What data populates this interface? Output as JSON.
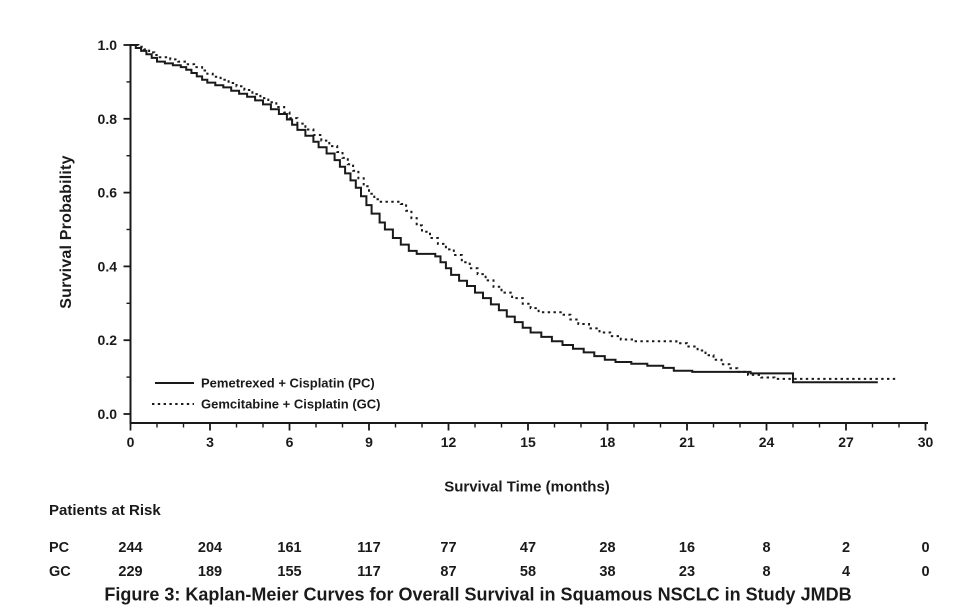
{
  "figure": {
    "caption": "Figure 3: Kaplan-Meier Curves for Overall Survival in Squamous NSCLC in Study JMDB"
  },
  "colors": {
    "background": "#ffffff",
    "axis": "#1a1a1a",
    "text": "#1a1a1a",
    "curve": "#1a1a1a"
  },
  "chart_data": {
    "type": "line",
    "subtype": "kaplan-meier-step",
    "title": "",
    "xlabel": "Survival Time (months)",
    "ylabel": "Survival Probability",
    "xlim": [
      0,
      30
    ],
    "ylim": [
      0.0,
      1.0
    ],
    "grid": false,
    "x_major_ticks": [
      0,
      3,
      6,
      9,
      12,
      15,
      18,
      21,
      24,
      27,
      30
    ],
    "x_minor_tick_step": 1,
    "y_major_ticks": [
      0.0,
      0.2,
      0.4,
      0.6,
      0.8,
      1.0
    ],
    "y_tick_labels": [
      "0.0",
      "0.2",
      "0.4",
      "0.6",
      "0.8",
      "1.0"
    ],
    "y_minor_ticks": [
      0.1,
      0.3,
      0.5,
      0.7,
      0.9
    ],
    "legend_position": "inside-lower-left",
    "series": [
      {
        "name": "Pemetrexed + Cisplatin (PC)",
        "abbr": "PC",
        "style": "solid",
        "color": "#1a1a1a",
        "points": [
          [
            0,
            1.0
          ],
          [
            0.2,
            0.992
          ],
          [
            0.4,
            0.984
          ],
          [
            0.6,
            0.975
          ],
          [
            0.8,
            0.965
          ],
          [
            1.0,
            0.955
          ],
          [
            1.3,
            0.95
          ],
          [
            1.6,
            0.945
          ],
          [
            1.9,
            0.94
          ],
          [
            2.1,
            0.933
          ],
          [
            2.3,
            0.924
          ],
          [
            2.5,
            0.915
          ],
          [
            2.7,
            0.906
          ],
          [
            2.9,
            0.898
          ],
          [
            3.2,
            0.891
          ],
          [
            3.5,
            0.885
          ],
          [
            3.8,
            0.876
          ],
          [
            4.1,
            0.868
          ],
          [
            4.4,
            0.86
          ],
          [
            4.7,
            0.85
          ],
          [
            5.0,
            0.839
          ],
          [
            5.3,
            0.826
          ],
          [
            5.6,
            0.813
          ],
          [
            5.9,
            0.798
          ],
          [
            6.1,
            0.784
          ],
          [
            6.3,
            0.77
          ],
          [
            6.6,
            0.754
          ],
          [
            6.9,
            0.738
          ],
          [
            7.1,
            0.723
          ],
          [
            7.4,
            0.706
          ],
          [
            7.7,
            0.688
          ],
          [
            7.9,
            0.67
          ],
          [
            8.1,
            0.652
          ],
          [
            8.3,
            0.633
          ],
          [
            8.5,
            0.613
          ],
          [
            8.7,
            0.59
          ],
          [
            8.9,
            0.566
          ],
          [
            9.1,
            0.543
          ],
          [
            9.4,
            0.519
          ],
          [
            9.6,
            0.5
          ],
          [
            9.9,
            0.477
          ],
          [
            10.2,
            0.459
          ],
          [
            10.5,
            0.442
          ],
          [
            10.8,
            0.434
          ],
          [
            11.5,
            0.427
          ],
          [
            11.7,
            0.411
          ],
          [
            11.9,
            0.395
          ],
          [
            12.1,
            0.377
          ],
          [
            12.4,
            0.361
          ],
          [
            12.7,
            0.347
          ],
          [
            13.0,
            0.329
          ],
          [
            13.3,
            0.314
          ],
          [
            13.6,
            0.297
          ],
          [
            13.9,
            0.281
          ],
          [
            14.2,
            0.264
          ],
          [
            14.5,
            0.249
          ],
          [
            14.8,
            0.234
          ],
          [
            15.1,
            0.221
          ],
          [
            15.5,
            0.209
          ],
          [
            15.9,
            0.197
          ],
          [
            16.3,
            0.187
          ],
          [
            16.7,
            0.177
          ],
          [
            17.1,
            0.167
          ],
          [
            17.5,
            0.157
          ],
          [
            17.9,
            0.147
          ],
          [
            18.3,
            0.141
          ],
          [
            18.9,
            0.136
          ],
          [
            19.5,
            0.131
          ],
          [
            20.1,
            0.125
          ],
          [
            20.5,
            0.117
          ],
          [
            21.2,
            0.114
          ],
          [
            23.4,
            0.11
          ],
          [
            25.0,
            0.086
          ],
          [
            28.2,
            0.086
          ]
        ]
      },
      {
        "name": "Gemcitabine + Cisplatin (GC)",
        "abbr": "GC",
        "style": "dotted",
        "color": "#1a1a1a",
        "points": [
          [
            0,
            1.0
          ],
          [
            0.3,
            0.995
          ],
          [
            0.5,
            0.988
          ],
          [
            0.7,
            0.98
          ],
          [
            0.9,
            0.973
          ],
          [
            1.1,
            0.967
          ],
          [
            1.5,
            0.961
          ],
          [
            1.8,
            0.955
          ],
          [
            2.1,
            0.948
          ],
          [
            2.4,
            0.94
          ],
          [
            2.7,
            0.931
          ],
          [
            2.9,
            0.922
          ],
          [
            3.1,
            0.914
          ],
          [
            3.4,
            0.906
          ],
          [
            3.7,
            0.897
          ],
          [
            4.0,
            0.888
          ],
          [
            4.3,
            0.878
          ],
          [
            4.6,
            0.867
          ],
          [
            4.9,
            0.856
          ],
          [
            5.2,
            0.845
          ],
          [
            5.5,
            0.832
          ],
          [
            5.8,
            0.817
          ],
          [
            6.0,
            0.802
          ],
          [
            6.3,
            0.787
          ],
          [
            6.6,
            0.771
          ],
          [
            6.9,
            0.756
          ],
          [
            7.2,
            0.741
          ],
          [
            7.5,
            0.726
          ],
          [
            7.8,
            0.71
          ],
          [
            8.0,
            0.694
          ],
          [
            8.2,
            0.677
          ],
          [
            8.4,
            0.659
          ],
          [
            8.6,
            0.639
          ],
          [
            8.8,
            0.617
          ],
          [
            9.0,
            0.597
          ],
          [
            9.2,
            0.582
          ],
          [
            9.4,
            0.575
          ],
          [
            10.2,
            0.569
          ],
          [
            10.4,
            0.551
          ],
          [
            10.6,
            0.531
          ],
          [
            10.8,
            0.511
          ],
          [
            11.0,
            0.494
          ],
          [
            11.3,
            0.477
          ],
          [
            11.6,
            0.461
          ],
          [
            11.9,
            0.446
          ],
          [
            12.2,
            0.431
          ],
          [
            12.5,
            0.411
          ],
          [
            12.8,
            0.395
          ],
          [
            13.1,
            0.379
          ],
          [
            13.4,
            0.362
          ],
          [
            13.7,
            0.345
          ],
          [
            14.0,
            0.329
          ],
          [
            14.4,
            0.314
          ],
          [
            14.8,
            0.299
          ],
          [
            15.1,
            0.287
          ],
          [
            15.4,
            0.276
          ],
          [
            16.3,
            0.269
          ],
          [
            16.6,
            0.256
          ],
          [
            16.9,
            0.244
          ],
          [
            17.3,
            0.232
          ],
          [
            17.7,
            0.221
          ],
          [
            18.1,
            0.211
          ],
          [
            18.5,
            0.202
          ],
          [
            19.0,
            0.197
          ],
          [
            20.6,
            0.192
          ],
          [
            21.0,
            0.183
          ],
          [
            21.4,
            0.172
          ],
          [
            21.7,
            0.159
          ],
          [
            22.0,
            0.147
          ],
          [
            22.3,
            0.135
          ],
          [
            22.6,
            0.124
          ],
          [
            22.9,
            0.114
          ],
          [
            23.3,
            0.106
          ],
          [
            23.8,
            0.099
          ],
          [
            24.3,
            0.095
          ],
          [
            28.9,
            0.095
          ]
        ]
      }
    ],
    "patients_at_risk": {
      "header": "Patients at Risk",
      "times": [
        0,
        3,
        6,
        9,
        12,
        15,
        18,
        21,
        24,
        27,
        30
      ],
      "rows": [
        {
          "label": "PC",
          "counts": [
            244,
            204,
            161,
            117,
            77,
            47,
            28,
            16,
            8,
            2,
            0
          ]
        },
        {
          "label": "GC",
          "counts": [
            229,
            189,
            155,
            117,
            87,
            58,
            38,
            23,
            8,
            4,
            0
          ]
        }
      ]
    }
  }
}
